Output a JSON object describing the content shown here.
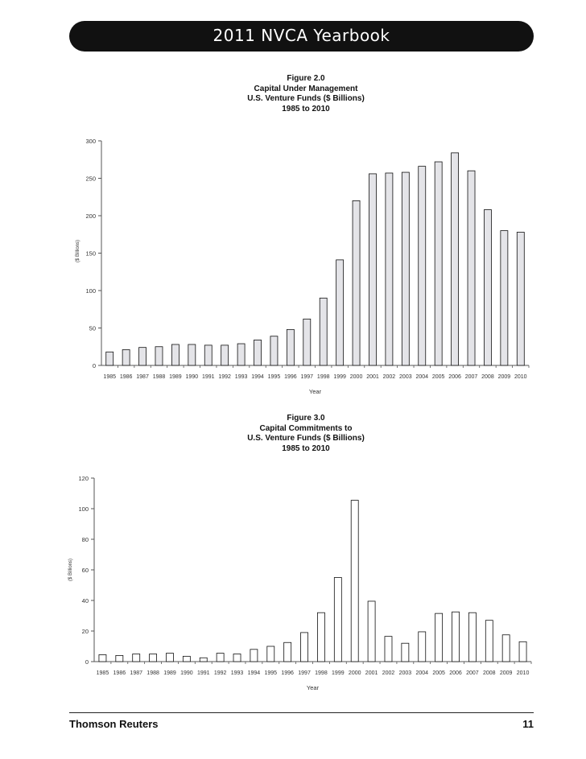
{
  "header": {
    "title": "2011 NVCA Yearbook"
  },
  "footer": {
    "publisher": "Thomson Reuters",
    "page_number": "11"
  },
  "chart_data": [
    {
      "type": "bar",
      "figure_label": "Figure 2.0",
      "title": "Capital Under Management",
      "subtitle": "U.S. Venture Funds ($ Billions)",
      "date_range": "1985 to 2010",
      "xlabel": "Year",
      "ylabel": "($ Billions)",
      "ylim": [
        0,
        300
      ],
      "yticks": [
        0,
        50,
        100,
        150,
        200,
        250,
        300
      ],
      "grid": false,
      "bar_color": "#e4e4e8",
      "categories": [
        "1985",
        "1986",
        "1987",
        "1988",
        "1989",
        "1990",
        "1991",
        "1992",
        "1993",
        "1994",
        "1995",
        "1996",
        "1997",
        "1998",
        "1999",
        "2000",
        "2001",
        "2002",
        "2003",
        "2004",
        "2005",
        "2006",
        "2007",
        "2008",
        "2009",
        "2010"
      ],
      "values": [
        18,
        21,
        24,
        25,
        28,
        28,
        27,
        27,
        29,
        34,
        39,
        48,
        62,
        90,
        141,
        220,
        256,
        257,
        258,
        266,
        272,
        284,
        260,
        208,
        180,
        178
      ]
    },
    {
      "type": "bar",
      "figure_label": "Figure 3.0",
      "title": "Capital Commitments to",
      "subtitle": "U.S. Venture Funds ($ Billions)",
      "date_range": "1985 to 2010",
      "xlabel": "Year",
      "ylabel": "($ Billions)",
      "ylim": [
        0,
        120
      ],
      "yticks": [
        0,
        20,
        40,
        60,
        80,
        100,
        120
      ],
      "grid": false,
      "bar_color": "#ffffff",
      "categories": [
        "1985",
        "1986",
        "1987",
        "1988",
        "1989",
        "1990",
        "1991",
        "1992",
        "1993",
        "1994",
        "1995",
        "1996",
        "1997",
        "1998",
        "1999",
        "2000",
        "2001",
        "2002",
        "2003",
        "2004",
        "2005",
        "2006",
        "2007",
        "2008",
        "2009",
        "2010"
      ],
      "values": [
        4.5,
        4.0,
        5.0,
        5.0,
        5.5,
        3.5,
        2.5,
        5.5,
        5.0,
        8.0,
        10.0,
        12.5,
        19.0,
        32.0,
        55.0,
        105.5,
        39.5,
        16.5,
        12.0,
        19.5,
        31.5,
        32.5,
        32.0,
        27.0,
        17.5,
        13.0
      ]
    }
  ]
}
